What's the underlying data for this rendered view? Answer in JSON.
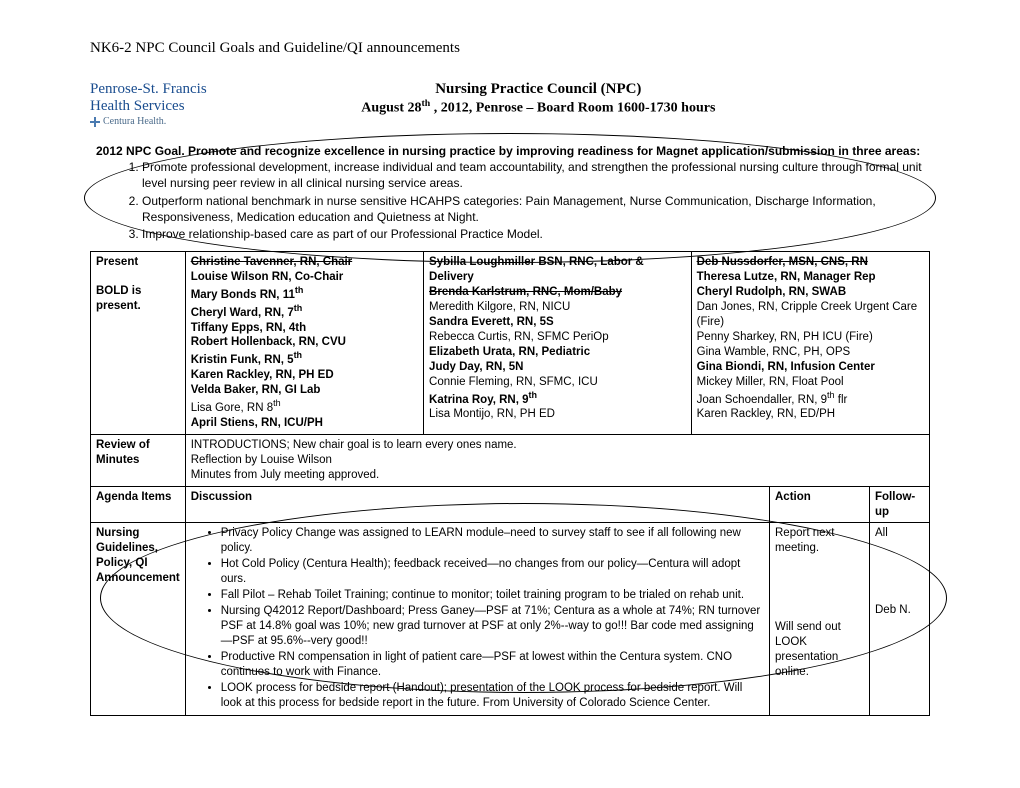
{
  "header": "NK6-2 NPC Council Goals and Guideline/QI announcements",
  "logo": {
    "line1": "Penrose-St. Francis",
    "line2": "Health Services",
    "line3": "Centura Health."
  },
  "title": {
    "line1": "Nursing Practice Council (NPC)",
    "line2_pre": "August 28",
    "line2_sup": "th",
    "line2_post": " , 2012, Penrose – Board Room 1600-1730 hours"
  },
  "goal": {
    "lead_bold": "2012 NPC Goal.  Promote and recognize excellence in nursing practice by improving readiness for Magnet application/submission in three areas:",
    "items": [
      "Promote professional development, increase individual and team accountability, and strengthen the professional nursing culture through formal unit level nursing peer review in all clinical nursing service areas.",
      "Outperform national benchmark in nurse sensitive HCAHPS categories: Pain Management, Nurse Communication, Discharge Information, Responsiveness, Medication education and Quietness at Night.",
      "Improve relationship-based care as part of our Professional Practice Model."
    ]
  },
  "present": {
    "label1": "Present",
    "label2": "BOLD is present.",
    "col1": [
      {
        "t": "Christine Tavenner, RN, Chair",
        "b": true,
        "s": true
      },
      {
        "t": "Louise Wilson RN, Co-Chair",
        "b": true
      },
      {
        "t": "Mary Bonds RN, 11",
        "sup": "th",
        "b": true
      },
      {
        "t": "Cheryl Ward, RN, 7",
        "sup": "th",
        "b": true
      },
      {
        "t": "Tiffany Epps, RN, 4th",
        "b": true
      },
      {
        "t": "Robert Hollenback, RN, CVU",
        "b": true
      },
      {
        "t": "Kristin Funk, RN, 5",
        "sup": "th",
        "b": true
      },
      {
        "t": "Karen Rackley, RN, PH ED",
        "b": true
      },
      {
        "t": "Velda Baker, RN, GI Lab",
        "b": true
      },
      {
        "t": "Lisa Gore, RN 8",
        "sup": "th"
      },
      {
        "t": "April Stiens, RN, ICU/PH",
        "b": true
      }
    ],
    "col2": [
      {
        "t": "Sybilla Loughmiller BSN, RNC, Labor & Delivery",
        "b": true
      },
      {
        "t": "Brenda Karlstrum, RNC, Mom/Baby",
        "b": true,
        "s": true
      },
      {
        "t": "Meredith Kilgore, RN, NICU"
      },
      {
        "t": "Sandra Everett, RN, 5S",
        "b": true
      },
      {
        "t": "Rebecca Curtis, RN, SFMC PeriOp"
      },
      {
        "t": "Elizabeth Urata, RN, Pediatric",
        "b": true
      },
      {
        "t": "Judy Day, RN, 5N",
        "b": true
      },
      {
        "t": "Connie Fleming, RN, SFMC, ICU"
      },
      {
        "t": "Katrina Roy, RN, 9",
        "sup": "th",
        "b": true
      },
      {
        "t": "Lisa Montijo, RN, PH ED"
      }
    ],
    "col3": [
      {
        "t": "Deb Nussdorfer, MSN, CNS, RN",
        "b": true,
        "s": true
      },
      {
        "t": "Theresa Lutze, RN,  Manager Rep",
        "b": true
      },
      {
        "t": "Cheryl Rudolph, RN, SWAB",
        "b": true
      },
      {
        "t": "Dan Jones, RN, Cripple Creek Urgent Care (Fire)"
      },
      {
        "t": "Penny Sharkey, RN, PH ICU (Fire)"
      },
      {
        "t": "Gina Wamble, RNC, PH, OPS"
      },
      {
        "t": "Gina Biondi, RN, Infusion Center",
        "b": true
      },
      {
        "t": "Mickey Miller, RN, Float Pool"
      },
      {
        "t": "Joan Schoendaller, RN, 9",
        "sup": "th",
        "post": " flr"
      },
      {
        "t": "Karen Rackley, RN, ED/PH"
      }
    ]
  },
  "minutes": {
    "label": "Review of Minutes",
    "lines": [
      "INTRODUCTIONS; New chair goal is to learn every ones name.",
      " Reflection by Louise Wilson",
      "Minutes from July meeting approved."
    ]
  },
  "agenda_header": {
    "c1": "Agenda Items",
    "c2": "Discussion",
    "c3": "Action",
    "c4": "Follow-up"
  },
  "nursing": {
    "label": "Nursing Guidelines, Policy, QI Announcement",
    "bullets": [
      "Privacy Policy Change was assigned to LEARN module–need to survey staff to see if all following new policy.",
      "Hot Cold Policy (Centura Health); feedback received—no changes from our policy—Centura will adopt ours.",
      "Fall Pilot – Rehab Toilet Training; continue to monitor; toilet training program to be trialed on rehab unit.",
      "Nursing Q42012 Report/Dashboard; Press Ganey—PSF at 71%; Centura as a whole at 74%;  RN turnover PSF at 14.8%  goal was 10%; new grad turnover at PSF at only 2%--way to go!!!  Bar code med assigning—PSF at 95.6%--very good!!",
      "Productive RN compensation in light of patient care—PSF at lowest within the Centura system.  CNO continues to work with Finance.",
      "LOOK process for bedside report (Handout); presentation of the LOOK process for bedside report.  Will look at this process for bedside report in the future.   From University of Colorado Science Center."
    ],
    "action1": "Report next meeting.",
    "action2": "Will send out LOOK presentation online.",
    "follow1": "All",
    "follow2": "Deb N."
  },
  "colors": {
    "text": "#000000",
    "logo": "#1a4d8f",
    "bg": "#ffffff"
  }
}
